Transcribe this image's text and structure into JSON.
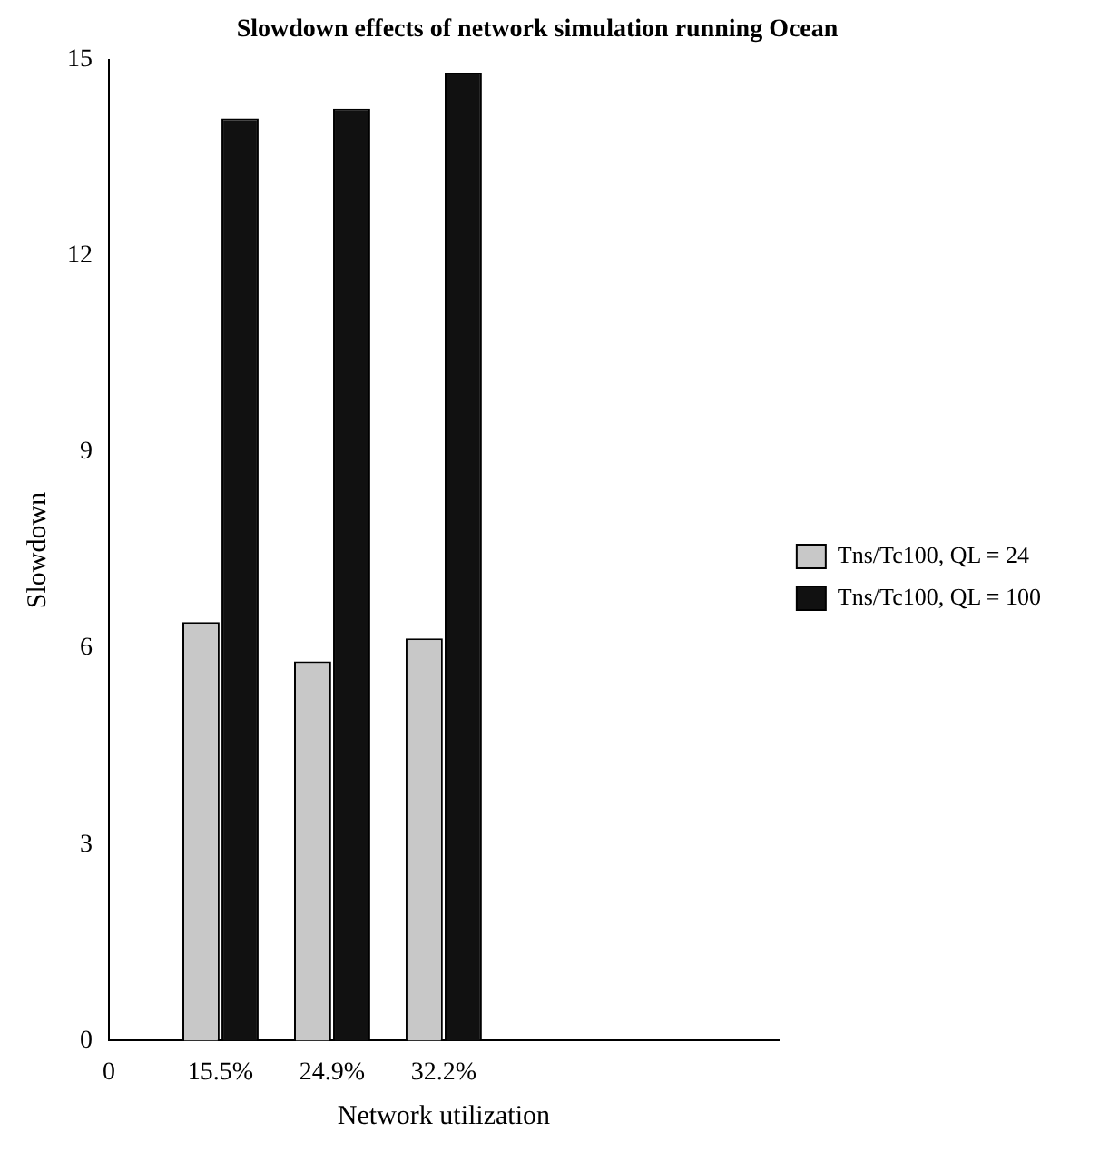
{
  "chart_data": {
    "type": "bar",
    "title": "Slowdown effects of network simulation running Ocean",
    "xlabel": "Network utilization",
    "ylabel": "Slowdown",
    "categories": [
      "0",
      "15.5%",
      "24.9%",
      "32.2%",
      null,
      null,
      null
    ],
    "series": [
      {
        "name": "Tns/Tc100, QL = 24",
        "color": "#c8c8c8",
        "values": [
          null,
          6.4,
          5.8,
          6.15,
          null,
          null,
          null
        ]
      },
      {
        "name": "Tns/Tc100, QL = 100",
        "color": "#111111",
        "values": [
          null,
          14.1,
          14.25,
          14.8,
          null,
          null,
          null
        ]
      }
    ],
    "ylim": [
      0,
      15
    ],
    "yticks": [
      0,
      3,
      6,
      9,
      12,
      15
    ],
    "grid": false,
    "legend": "right"
  }
}
